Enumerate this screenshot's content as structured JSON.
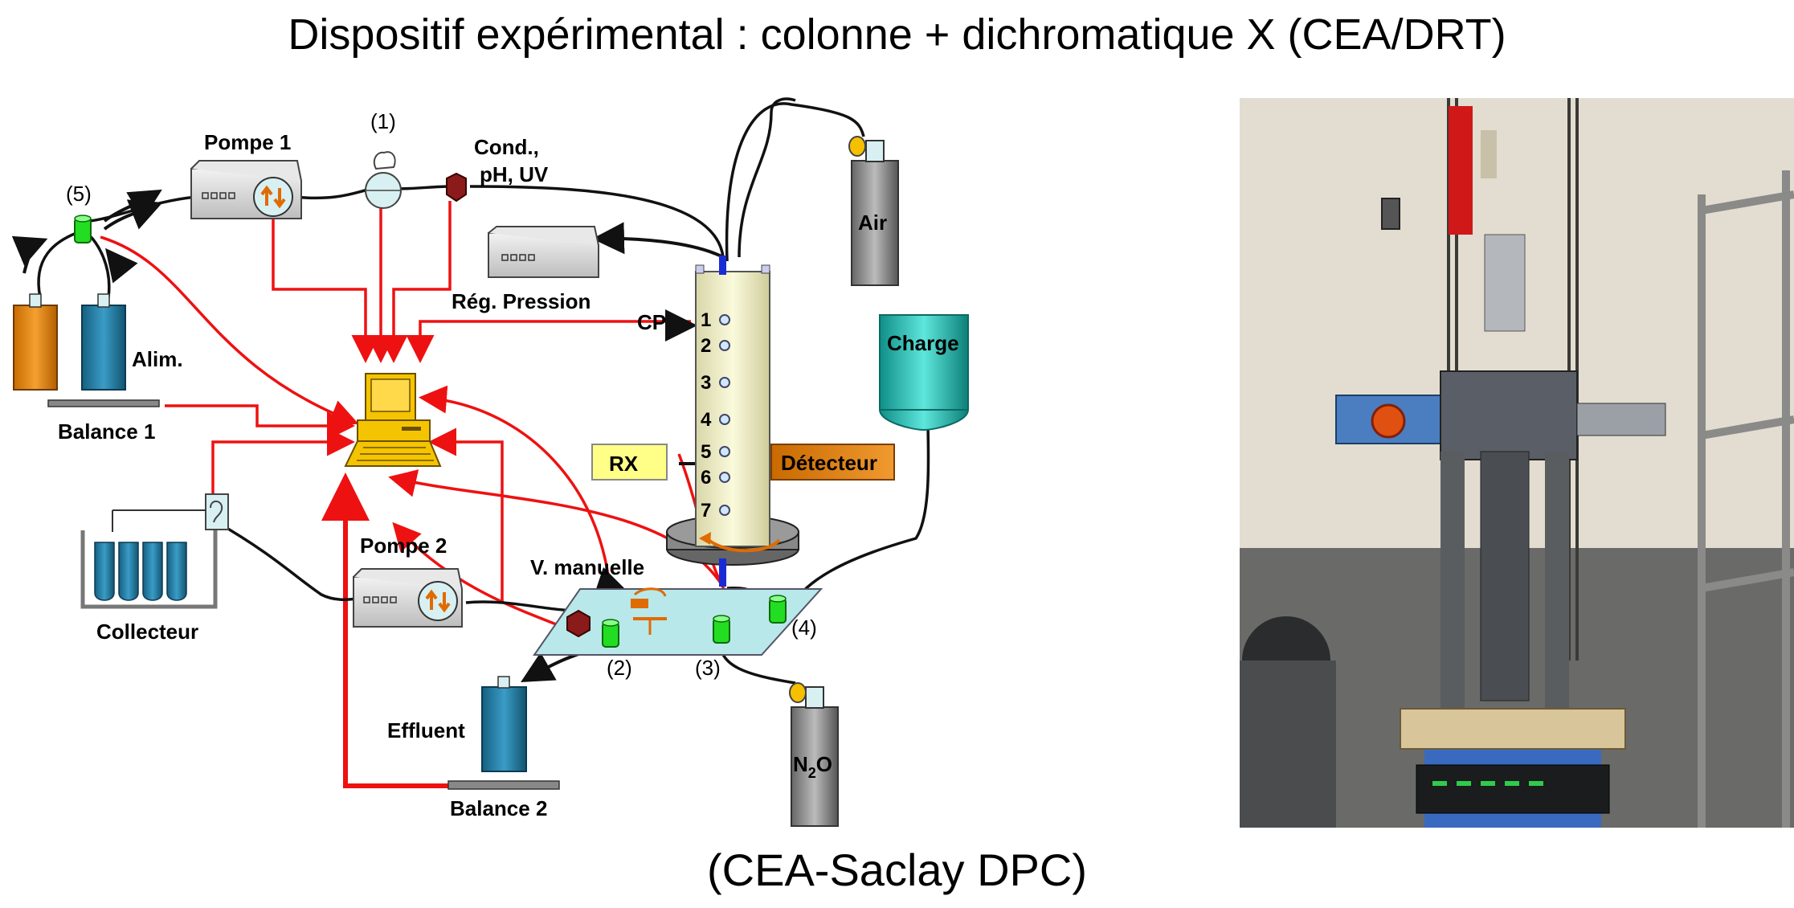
{
  "title": "Dispositif expérimental : colonne + dichromatique X (CEA/DRT)",
  "caption": "(CEA-Saclay DPC)",
  "labels": {
    "pompe1": "Pompe 1",
    "pompe2": "Pompe 2",
    "one": "(1)",
    "two": "(2)",
    "three": "(3)",
    "four": "(4)",
    "five": "(5)",
    "cond_line1": "Cond.,",
    "cond_line2": "pH, UV",
    "air": "Air",
    "reg_pression": "Rég. Pression",
    "cp": "CP",
    "charge": "Charge",
    "alim": "Alim.",
    "balance1": "Balance 1",
    "balance2": "Balance 2",
    "rx": "RX",
    "detecteur": "Détecteur",
    "collecteur": "Collecteur",
    "v_manuelle": "V. manuelle",
    "effluent": "Effluent",
    "n2o_base": "N",
    "n2o_sub": "2",
    "n2o_tail": "O"
  },
  "column_ports": [
    "1",
    "2",
    "3",
    "4",
    "5",
    "6",
    "7"
  ],
  "colors": {
    "signal_red": "#ee1111",
    "tube_black": "#111111",
    "column_fill": "#f1f0cc",
    "computer_yellow": "#f5c400",
    "detector_orange": "#ee8a1a",
    "rx_yellow": "#ffff88",
    "charge_teal": "#1fb8b0",
    "bottle_orange": "#e88a12",
    "bottle_blue": "#2a7fa8",
    "valve_green": "#22dd22",
    "valve_maroon": "#8b1a1a",
    "plate_cyan": "#b8e8ea"
  },
  "photo": {
    "description_icon": "lab-photo-column-apparatus"
  }
}
